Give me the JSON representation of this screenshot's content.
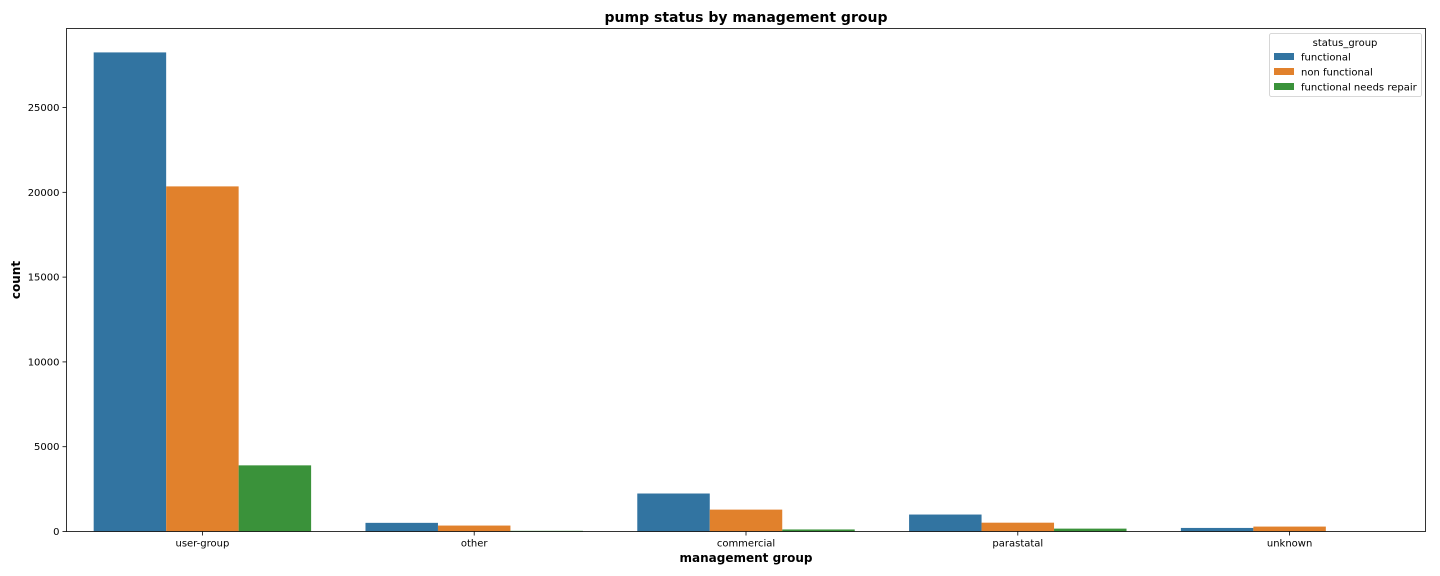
{
  "chart_data": {
    "type": "bar",
    "title": "pump status by management group",
    "xlabel": "management group",
    "ylabel": "count",
    "categories": [
      "user-group",
      "other",
      "commercial",
      "parastatal",
      "unknown"
    ],
    "series": [
      {
        "name": "functional",
        "color": "#3274a1",
        "values": [
          28250,
          510,
          2240,
          1000,
          210
        ]
      },
      {
        "name": "non functional",
        "color": "#e1812c",
        "values": [
          20350,
          350,
          1290,
          520,
          290
        ]
      },
      {
        "name": "functional needs repair",
        "color": "#3a923a",
        "values": [
          3900,
          40,
          120,
          170,
          0
        ]
      }
    ],
    "ylim": [
      0,
      29660
    ],
    "yticks": [
      0,
      5000,
      10000,
      15000,
      20000,
      25000
    ],
    "legend": {
      "title": "status_group",
      "position": "top-right"
    },
    "grid": false
  }
}
